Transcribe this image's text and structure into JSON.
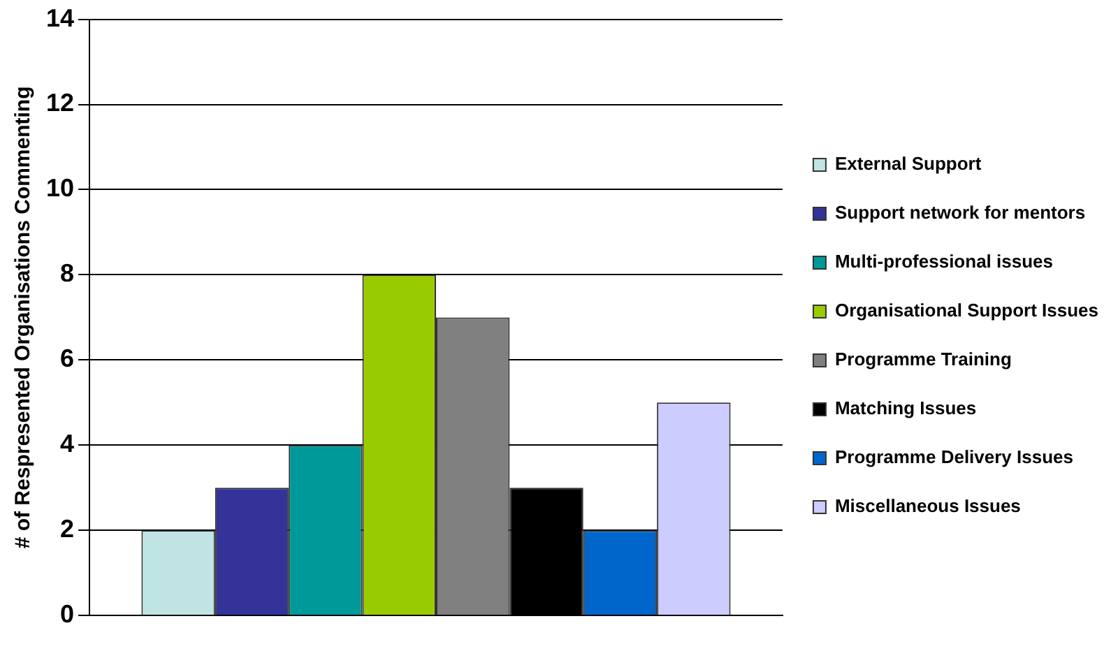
{
  "chart_data": {
    "type": "bar",
    "ylabel": "# of Respresented Organisations Commenting",
    "categories": [
      null
    ],
    "series": [
      {
        "name": "External Support",
        "color": "#c0e4e4",
        "values": [
          2
        ]
      },
      {
        "name": "Support network for mentors",
        "color": "#333399",
        "values": [
          3
        ]
      },
      {
        "name": "Multi-professional issues",
        "color": "#009999",
        "values": [
          4
        ]
      },
      {
        "name": "Organisational Support Issues",
        "color": "#99cc00",
        "values": [
          8
        ]
      },
      {
        "name": "Programme Training",
        "color": "#808080",
        "values": [
          7
        ]
      },
      {
        "name": "Matching Issues",
        "color": "#000000",
        "values": [
          3
        ]
      },
      {
        "name": "Programme Delivery Issues",
        "color": "#0066cc",
        "values": [
          2
        ]
      },
      {
        "name": "Miscellaneous Issues",
        "color": "#ccccff",
        "values": [
          5
        ]
      }
    ],
    "ylim": [
      0,
      14
    ],
    "yticks": [
      0,
      2,
      4,
      6,
      8,
      10,
      12,
      14
    ],
    "grid": "y",
    "legend": "right"
  }
}
